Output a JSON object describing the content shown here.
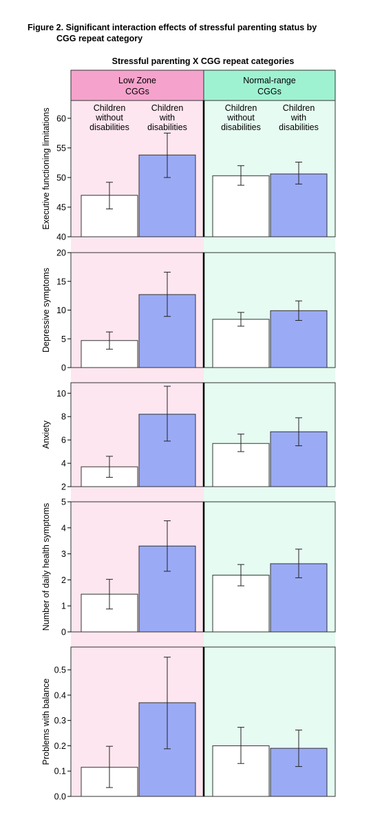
{
  "figure": {
    "title_line1": "Figure 2. Significant interaction effects of stressful parenting status by",
    "title_line2": "CGG repeat category"
  },
  "chart_data": {
    "type": "bar",
    "title": "Stressful parenting X CGG repeat categories",
    "groups": [
      {
        "label_line1": "Low Zone",
        "label_line2": "CGGs",
        "color": "#f5a3cc",
        "bg": "#fde6ef"
      },
      {
        "label_line1": "Normal-range",
        "label_line2": "CGGs",
        "color": "#9ef2d2",
        "bg": "#e6fbf1"
      }
    ],
    "categories": [
      {
        "label": [
          "Children",
          "without",
          "disabilities"
        ]
      },
      {
        "label": [
          "Children",
          "with",
          "disabilities"
        ]
      }
    ],
    "bar_colors": [
      "#ffffff",
      "#9aaaf5"
    ],
    "panels": [
      {
        "ylabel": "Executive functioning limitations",
        "ylim": [
          40,
          63
        ],
        "yticks": [
          40,
          45,
          50,
          55,
          60
        ],
        "series": [
          {
            "group": "Low Zone CGGs",
            "values": [
              47.0,
              53.8
            ],
            "err_low": [
              44.7,
              50.0
            ],
            "err_high": [
              49.2,
              57.5
            ]
          },
          {
            "group": "Normal-range CGGs",
            "values": [
              50.3,
              50.6
            ],
            "err_low": [
              48.7,
              48.9
            ],
            "err_high": [
              52.0,
              52.6
            ]
          }
        ]
      },
      {
        "ylabel": "Depressive symptoms",
        "ylim": [
          0,
          20
        ],
        "yticks": [
          0,
          5,
          10,
          15,
          20
        ],
        "series": [
          {
            "group": "Low Zone CGGs",
            "values": [
              4.7,
              12.7
            ],
            "err_low": [
              3.2,
              8.9
            ],
            "err_high": [
              6.2,
              16.6
            ]
          },
          {
            "group": "Normal-range CGGs",
            "values": [
              8.4,
              9.9
            ],
            "err_low": [
              7.2,
              8.2
            ],
            "err_high": [
              9.6,
              11.6
            ]
          }
        ]
      },
      {
        "ylabel": "Anxiety",
        "ylim": [
          2,
          10.9
        ],
        "yticks": [
          2,
          4,
          6,
          8,
          10
        ],
        "series": [
          {
            "group": "Low Zone CGGs",
            "values": [
              3.7,
              8.2
            ],
            "err_low": [
              2.8,
              5.9
            ],
            "err_high": [
              4.6,
              10.6
            ]
          },
          {
            "group": "Normal-range CGGs",
            "values": [
              5.7,
              6.7
            ],
            "err_low": [
              5.0,
              5.5
            ],
            "err_high": [
              6.5,
              7.9
            ]
          }
        ]
      },
      {
        "ylabel": "Number of daily health symptoms",
        "ylim": [
          0,
          5
        ],
        "yticks": [
          0,
          1,
          2,
          3,
          4,
          5
        ],
        "series": [
          {
            "group": "Low Zone CGGs",
            "values": [
              1.45,
              3.3
            ],
            "err_low": [
              0.88,
              2.33
            ],
            "err_high": [
              2.02,
              4.27
            ]
          },
          {
            "group": "Normal-range CGGs",
            "values": [
              2.18,
              2.62
            ],
            "err_low": [
              1.77,
              2.08
            ],
            "err_high": [
              2.59,
              3.18
            ]
          }
        ]
      },
      {
        "ylabel": "Problems with balance",
        "ylim": [
          0,
          0.59
        ],
        "yticks": [
          0.0,
          0.1,
          0.2,
          0.3,
          0.4,
          0.5
        ],
        "ytick_labels": [
          "0.0",
          "0.1",
          "0.2",
          "0.3",
          "0.4",
          "0.5"
        ],
        "series": [
          {
            "group": "Low Zone CGGs",
            "values": [
              0.115,
              0.37
            ],
            "err_low": [
              0.035,
              0.188
            ],
            "err_high": [
              0.198,
              0.55
            ]
          },
          {
            "group": "Normal-range CGGs",
            "values": [
              0.2,
              0.19
            ],
            "err_low": [
              0.13,
              0.118
            ],
            "err_high": [
              0.273,
              0.262
            ]
          }
        ]
      }
    ]
  }
}
